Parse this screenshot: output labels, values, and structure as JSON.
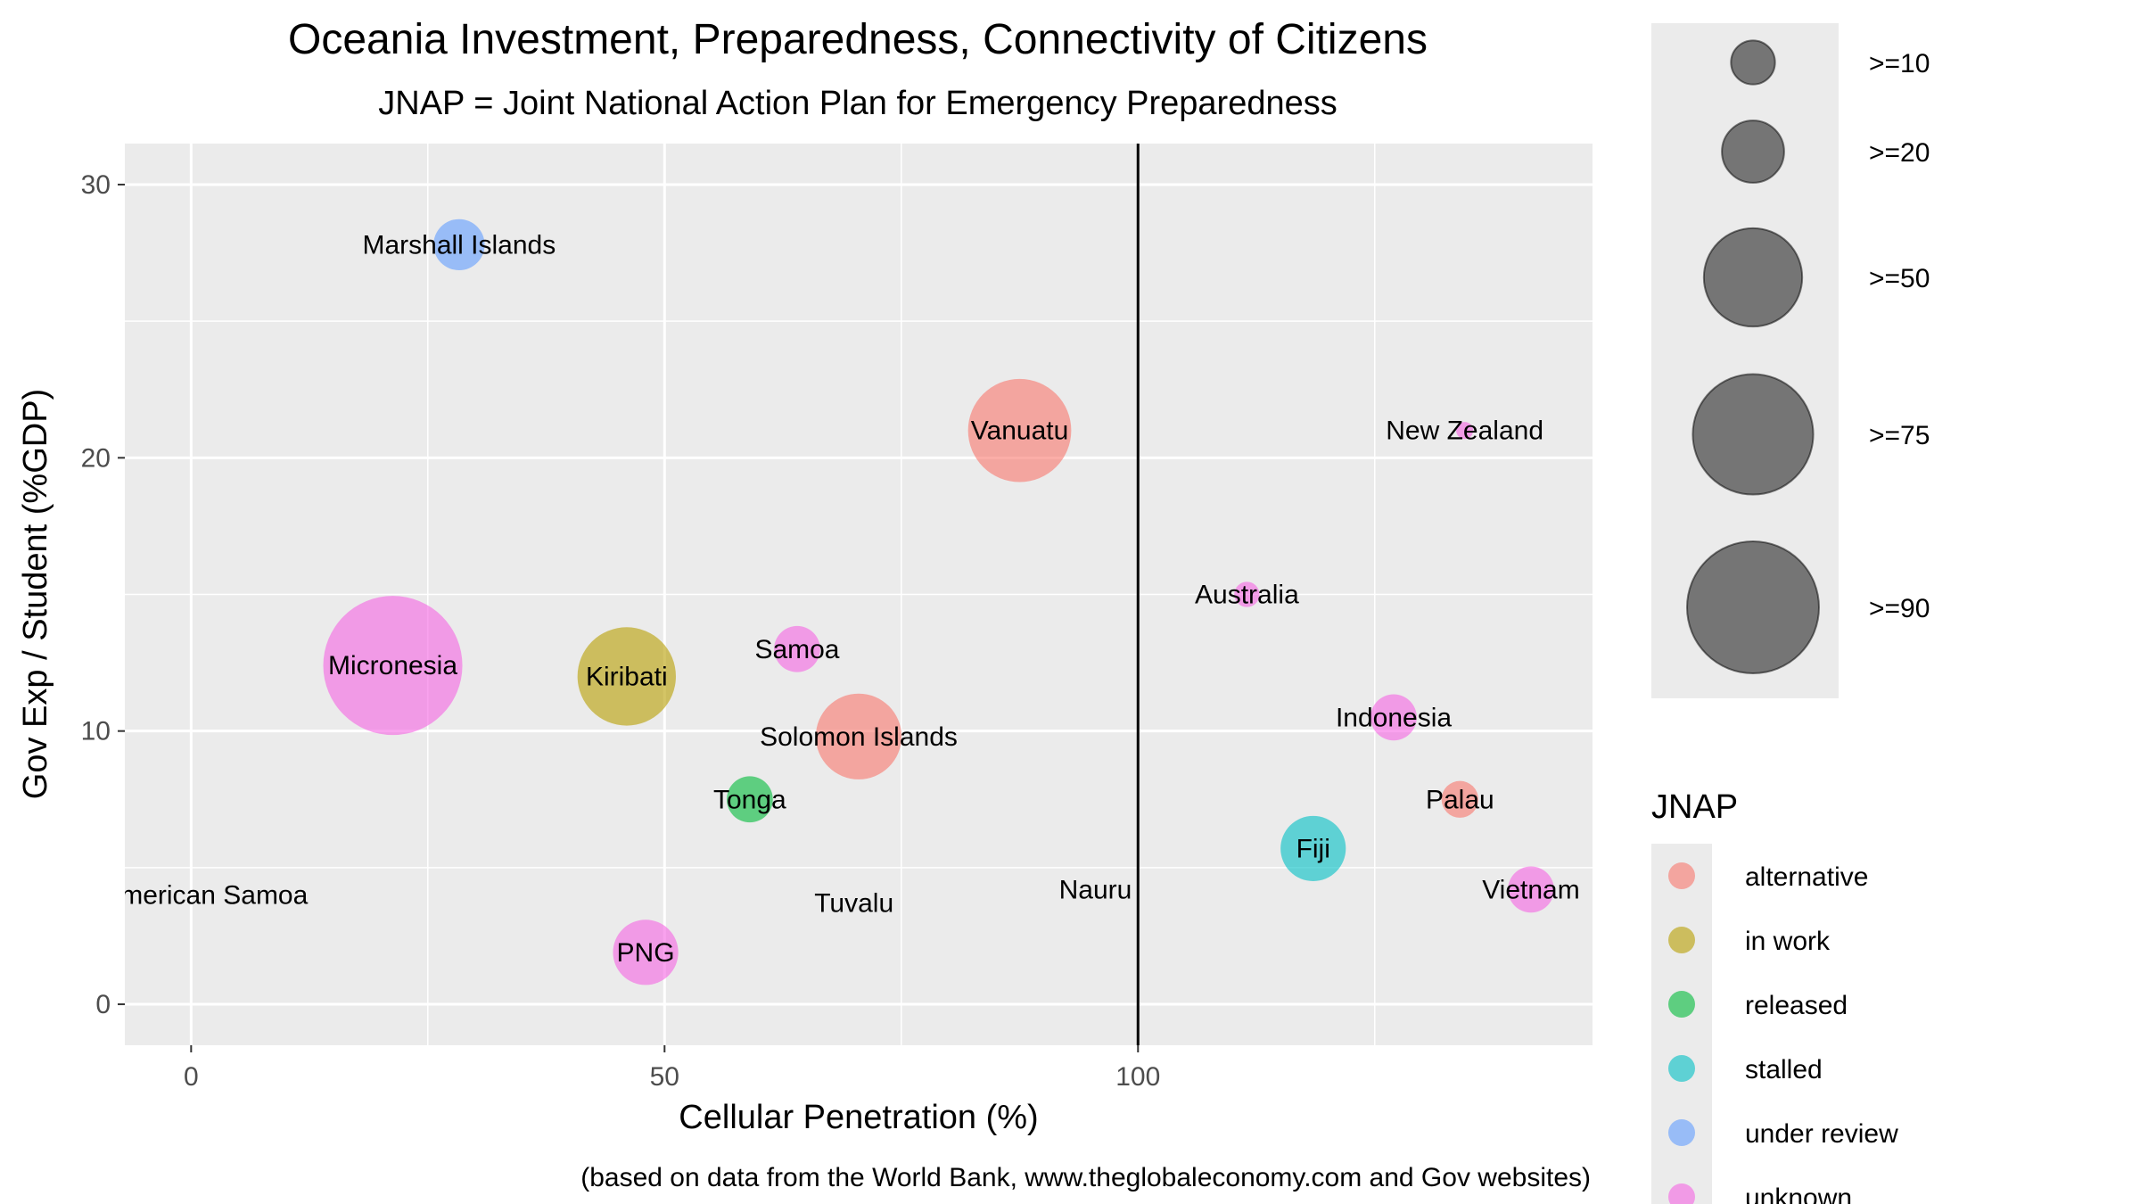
{
  "chart_data": {
    "type": "scatter",
    "title": "Oceania Investment, Preparedness, Connectivity of Citizens",
    "subtitle": "JNAP = Joint National Action Plan for Emergency Preparedness",
    "xlabel": "Cellular Penetration (%)",
    "ylabel": "Gov Exp / Student (%GDP)",
    "caption": "(based on data from the World Bank, www.theglobaleconomy.com and Gov websites)",
    "xlim": [
      -7,
      148
    ],
    "ylim": [
      -1.5,
      31.5
    ],
    "x_ticks": [
      0,
      50,
      100
    ],
    "y_ticks": [
      0,
      10,
      20,
      30
    ],
    "grid": true,
    "reference_line": {
      "x": 100
    },
    "size_legend": {
      "position": "right",
      "entries": [
        {
          "label": ">=10",
          "value": 10
        },
        {
          "label": ">=20",
          "value": 20
        },
        {
          "label": ">=50",
          "value": 50
        },
        {
          "label": ">=75",
          "value": 75
        },
        {
          "label": ">=90",
          "value": 90
        }
      ]
    },
    "color_legend": {
      "title": "JNAP",
      "position": "right",
      "entries": [
        {
          "label": "alternative",
          "color": "#F8766D"
        },
        {
          "label": "in work",
          "color": "#B79F00"
        },
        {
          "label": "released",
          "color": "#00BA38"
        },
        {
          "label": "stalled",
          "color": "#00BFC4"
        },
        {
          "label": "under review",
          "color": "#619CFF"
        },
        {
          "label": "unknown",
          "color": "#F564E3"
        }
      ]
    },
    "points": [
      {
        "label": "Marshall Islands",
        "x": 28.3,
        "y": 27.8,
        "size": 13.5,
        "jnap": "under review"
      },
      {
        "label": "Vanuatu",
        "x": 87.5,
        "y": 21.0,
        "size": 55,
        "jnap": "alternative"
      },
      {
        "label": "New Zealand",
        "x": 134.5,
        "y": 21.0,
        "size": 1.5,
        "jnap": "unknown"
      },
      {
        "label": "Australia",
        "x": 111.5,
        "y": 15.0,
        "size": 3.3,
        "jnap": "unknown"
      },
      {
        "label": "Micronesia",
        "x": 21.3,
        "y": 12.4,
        "size": 100,
        "jnap": "unknown"
      },
      {
        "label": "Samoa",
        "x": 64.0,
        "y": 13.0,
        "size": 11,
        "jnap": "unknown"
      },
      {
        "label": "Kiribati",
        "x": 46.0,
        "y": 12.0,
        "size": 50,
        "jnap": "in work"
      },
      {
        "label": "Solomon Islands",
        "x": 70.5,
        "y": 9.8,
        "size": 38,
        "jnap": "alternative"
      },
      {
        "label": "Indonesia",
        "x": 127.0,
        "y": 10.5,
        "size": 11,
        "jnap": "unknown"
      },
      {
        "label": "Tonga",
        "x": 59.0,
        "y": 7.5,
        "size": 11,
        "jnap": "released"
      },
      {
        "label": "Palau",
        "x": 134.0,
        "y": 7.5,
        "size": 7,
        "jnap": "alternative"
      },
      {
        "label": "Fiji",
        "x": 118.5,
        "y": 5.7,
        "size": 22,
        "jnap": "stalled"
      },
      {
        "label": "Vietnam",
        "x": 141.5,
        "y": 4.2,
        "size": 11,
        "jnap": "unknown"
      },
      {
        "label": "PNG",
        "x": 48.0,
        "y": 1.9,
        "size": 22,
        "jnap": "unknown"
      },
      {
        "label": "American Samoa",
        "x": 1.5,
        "y": 4.0,
        "size": 0,
        "jnap": "unknown"
      },
      {
        "label": "Tuvalu",
        "x": 70.0,
        "y": 3.7,
        "size": 0,
        "jnap": "unknown"
      },
      {
        "label": "Nauru",
        "x": 95.5,
        "y": 4.2,
        "size": 0,
        "jnap": "unknown"
      }
    ]
  }
}
